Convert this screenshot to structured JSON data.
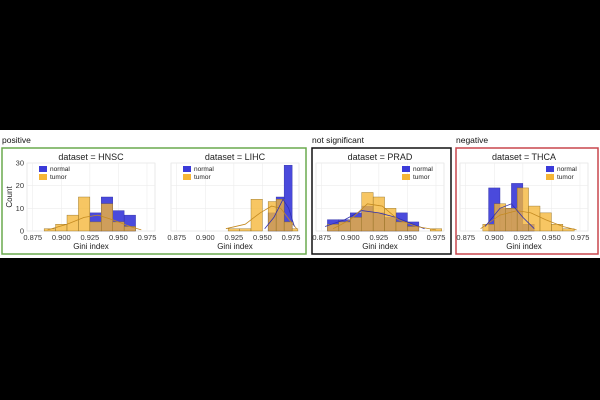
{
  "groups": [
    {
      "label": "positive",
      "border_color": "#6aaa4f",
      "panels": [
        0,
        1
      ]
    },
    {
      "label": "not significant",
      "border_color": "#111111",
      "panels": [
        2
      ]
    },
    {
      "label": "negative",
      "border_color": "#c9474d",
      "panels": [
        3
      ]
    }
  ],
  "colors": {
    "normal": "#3b3bd9",
    "tumor": "#f5b637",
    "overlap": "#b58a4a"
  },
  "chart_data": [
    {
      "type": "bar",
      "title": "dataset = HNSC",
      "xlabel": "Gini index",
      "ylabel": "Count",
      "xlim": [
        0.87,
        0.982
      ],
      "ylim": [
        0,
        30
      ],
      "xticks": [
        "0.875",
        "0.900",
        "0.925",
        "0.950",
        "0.975"
      ],
      "yticks": [
        "0",
        "10",
        "20",
        "30"
      ],
      "legend": [
        "normal",
        "tumor"
      ],
      "legend_position": "top-left",
      "grid": true,
      "series": [
        {
          "name": "normal",
          "bins": [
            [
              0.925,
              0.935,
              8
            ],
            [
              0.935,
              0.945,
              15
            ],
            [
              0.945,
              0.955,
              9
            ],
            [
              0.955,
              0.965,
              7
            ]
          ]
        },
        {
          "name": "tumor",
          "bins": [
            [
              0.885,
              0.895,
              1
            ],
            [
              0.895,
              0.905,
              3
            ],
            [
              0.905,
              0.915,
              7
            ],
            [
              0.915,
              0.925,
              15
            ],
            [
              0.925,
              0.935,
              4
            ],
            [
              0.935,
              0.945,
              12
            ],
            [
              0.945,
              0.955,
              4
            ],
            [
              0.955,
              0.965,
              2
            ]
          ]
        }
      ],
      "kde": [
        {
          "series": "tumor",
          "points": [
            [
              0.888,
              0.5
            ],
            [
              0.905,
              3
            ],
            [
              0.92,
              6
            ],
            [
              0.932,
              7
            ],
            [
              0.945,
              5
            ],
            [
              0.96,
              2
            ],
            [
              0.97,
              0.5
            ]
          ]
        }
      ]
    },
    {
      "type": "bar",
      "title": "dataset = LIHC",
      "xlabel": "Gini index",
      "ylabel": "",
      "xlim": [
        0.87,
        0.982
      ],
      "ylim": [
        0,
        30
      ],
      "xticks": [
        "0.875",
        "0.900",
        "0.925",
        "0.950",
        "0.975"
      ],
      "yticks": [],
      "legend": [
        "normal",
        "tumor"
      ],
      "legend_position": "top-left",
      "grid": true,
      "series": [
        {
          "name": "normal",
          "bins": [
            [
              0.955,
              0.962,
              8
            ],
            [
              0.962,
              0.969,
              15
            ],
            [
              0.969,
              0.976,
              29
            ]
          ]
        },
        {
          "name": "tumor",
          "bins": [
            [
              0.92,
              0.93,
              1
            ],
            [
              0.93,
              0.94,
              1
            ],
            [
              0.94,
              0.95,
              14
            ],
            [
              0.955,
              0.962,
              13
            ],
            [
              0.962,
              0.969,
              14
            ],
            [
              0.969,
              0.976,
              4
            ],
            [
              0.976,
              0.981,
              1
            ]
          ]
        }
      ],
      "kde": [
        {
          "series": "tumor",
          "points": [
            [
              0.918,
              1
            ],
            [
              0.935,
              3
            ],
            [
              0.948,
              8
            ],
            [
              0.958,
              11
            ],
            [
              0.966,
              10
            ],
            [
              0.975,
              4
            ],
            [
              0.98,
              1
            ]
          ]
        },
        {
          "series": "normal",
          "points": [
            [
              0.952,
              1
            ],
            [
              0.96,
              6
            ],
            [
              0.968,
              14
            ],
            [
              0.973,
              10
            ],
            [
              0.978,
              2
            ]
          ]
        }
      ]
    },
    {
      "type": "bar",
      "title": "dataset = PRAD",
      "xlabel": "Gini index",
      "ylabel": "",
      "xlim": [
        0.87,
        0.982
      ],
      "ylim": [
        0,
        30
      ],
      "xticks": [
        "0.875",
        "0.900",
        "0.925",
        "0.950",
        "0.975"
      ],
      "yticks": [],
      "legend": [
        "normal",
        "tumor"
      ],
      "legend_position": "top-right",
      "grid": true,
      "series": [
        {
          "name": "normal",
          "bins": [
            [
              0.88,
              0.89,
              5
            ],
            [
              0.89,
              0.9,
              5
            ],
            [
              0.9,
              0.91,
              8
            ],
            [
              0.91,
              0.92,
              11
            ],
            [
              0.92,
              0.93,
              8
            ],
            [
              0.93,
              0.94,
              6
            ],
            [
              0.94,
              0.95,
              8
            ],
            [
              0.95,
              0.96,
              4
            ]
          ]
        },
        {
          "name": "tumor",
          "bins": [
            [
              0.88,
              0.89,
              3
            ],
            [
              0.89,
              0.9,
              4
            ],
            [
              0.9,
              0.91,
              6
            ],
            [
              0.91,
              0.92,
              17
            ],
            [
              0.92,
              0.93,
              15
            ],
            [
              0.93,
              0.94,
              10
            ],
            [
              0.94,
              0.95,
              4
            ],
            [
              0.95,
              0.96,
              2
            ],
            [
              0.97,
              0.98,
              1
            ]
          ]
        }
      ],
      "kde": [
        {
          "series": "normal",
          "points": [
            [
              0.878,
              2
            ],
            [
              0.895,
              5
            ],
            [
              0.91,
              9
            ],
            [
              0.925,
              8
            ],
            [
              0.94,
              6
            ],
            [
              0.955,
              3
            ],
            [
              0.965,
              1
            ]
          ]
        },
        {
          "series": "tumor",
          "points": [
            [
              0.885,
              1
            ],
            [
              0.9,
              5
            ],
            [
              0.915,
              12
            ],
            [
              0.928,
              11
            ],
            [
              0.942,
              5
            ],
            [
              0.958,
              2
            ],
            [
              0.975,
              0.5
            ]
          ]
        }
      ]
    },
    {
      "type": "bar",
      "title": "dataset = THCA",
      "xlabel": "Gini index",
      "ylabel": "",
      "xlim": [
        0.87,
        0.982
      ],
      "ylim": [
        0,
        30
      ],
      "xticks": [
        "0.875",
        "0.900",
        "0.925",
        "0.950",
        "0.975"
      ],
      "yticks": [],
      "legend": [
        "normal",
        "tumor"
      ],
      "legend_position": "top-right",
      "grid": true,
      "series": [
        {
          "name": "normal",
          "bins": [
            [
              0.895,
              0.905,
              19
            ],
            [
              0.905,
              0.915,
              10
            ],
            [
              0.915,
              0.925,
              21
            ],
            [
              0.925,
              0.935,
              3
            ]
          ]
        },
        {
          "name": "tumor",
          "bins": [
            [
              0.89,
              0.9,
              3
            ],
            [
              0.9,
              0.91,
              12
            ],
            [
              0.91,
              0.92,
              10
            ],
            [
              0.92,
              0.93,
              19
            ],
            [
              0.93,
              0.94,
              11
            ],
            [
              0.94,
              0.95,
              8
            ],
            [
              0.95,
              0.96,
              3
            ],
            [
              0.96,
              0.97,
              1
            ]
          ]
        }
      ],
      "kde": [
        {
          "series": "tumor",
          "points": [
            [
              0.888,
              1
            ],
            [
              0.905,
              7
            ],
            [
              0.92,
              9
            ],
            [
              0.932,
              8
            ],
            [
              0.945,
              5
            ],
            [
              0.96,
              2
            ],
            [
              0.972,
              0.5
            ]
          ]
        },
        {
          "series": "normal",
          "points": [
            [
              0.892,
              2
            ],
            [
              0.905,
              10
            ],
            [
              0.915,
              12
            ],
            [
              0.925,
              6
            ],
            [
              0.935,
              1
            ]
          ]
        }
      ]
    }
  ]
}
